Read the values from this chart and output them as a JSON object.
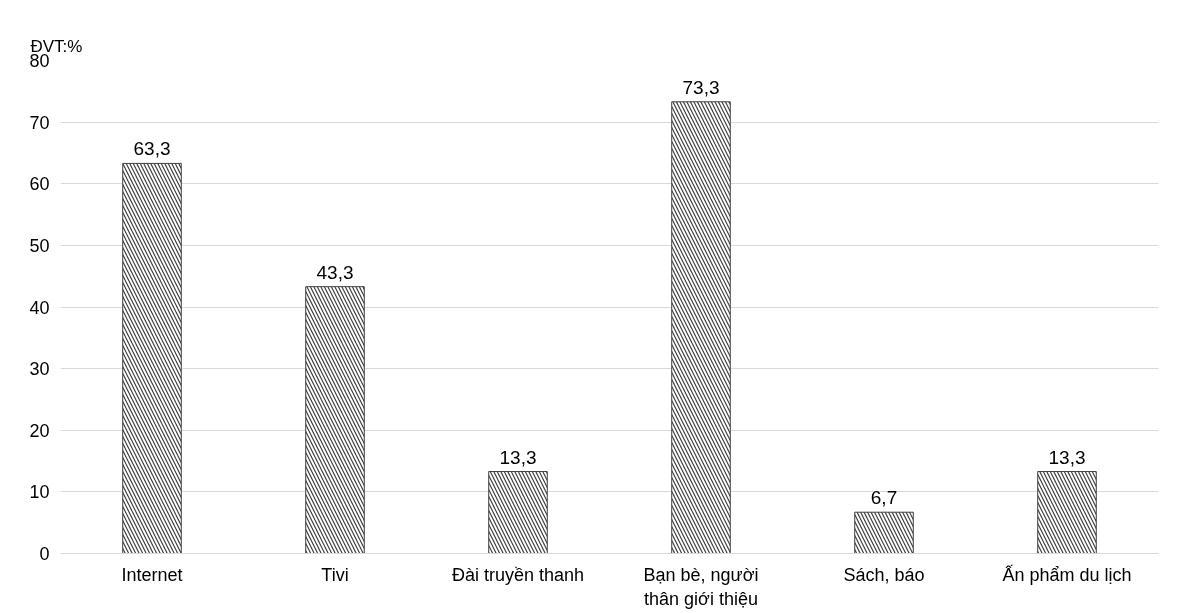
{
  "chart_data": {
    "type": "bar",
    "ylabel": "ĐVT:%",
    "categories": [
      "Internet",
      "Tivi",
      "Đài truyền thanh",
      "Bạn bè, người thân giới thiệu",
      "Sách, báo",
      "Ấn phẩm du lịch"
    ],
    "values": [
      63.3,
      43.3,
      13.3,
      73.3,
      6.7,
      13.3
    ],
    "value_labels": [
      "63,3",
      "43,3",
      "13,3",
      "73,3",
      "6,7",
      "13,3"
    ],
    "color": "#404040",
    "ylim": [
      0,
      80
    ],
    "yticks": [
      0,
      10,
      20,
      30,
      40,
      50,
      60,
      70,
      80
    ],
    "grid": "y"
  }
}
